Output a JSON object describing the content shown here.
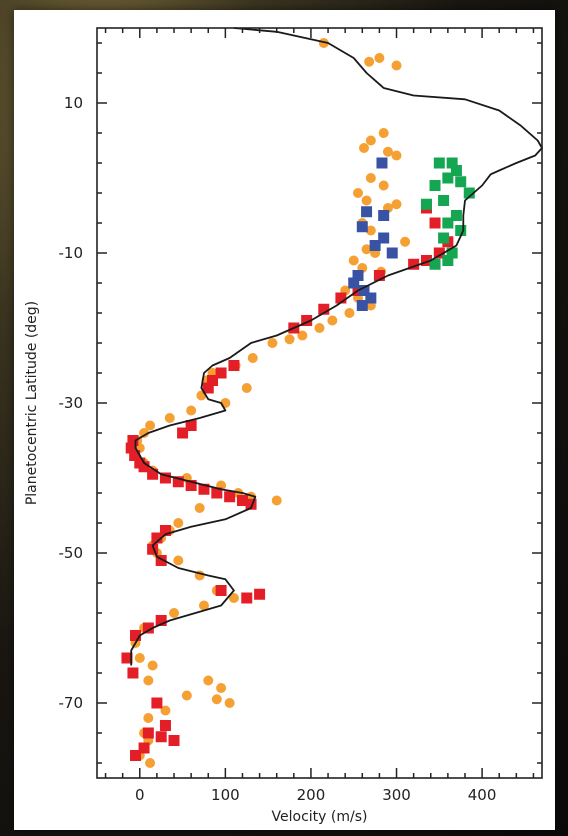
{
  "chart_data": {
    "type": "scatter",
    "title": "",
    "xlabel": "Velocity (m/s)",
    "ylabel": "Planetocentric Latitude (deg)",
    "xlim": [
      -50,
      470
    ],
    "ylim": [
      -80,
      20
    ],
    "xticks": [
      0,
      100,
      200,
      300,
      400
    ],
    "yticks": [
      10,
      -10,
      -30,
      -50,
      -70
    ],
    "grid": false,
    "legend": "none",
    "colors": {
      "orange": "#f5a033",
      "red": "#e41e26",
      "blue": "#3953a4",
      "green": "#14a651",
      "line": "#1a1a1a"
    },
    "series": [
      {
        "color": "orange",
        "marker": "circle",
        "points": [
          [
            215,
            18
          ],
          [
            280,
            16
          ],
          [
            268,
            15.5
          ],
          [
            300,
            15
          ],
          [
            285,
            6
          ],
          [
            270,
            5
          ],
          [
            262,
            4
          ],
          [
            290,
            3.5
          ],
          [
            300,
            3
          ],
          [
            270,
            0
          ],
          [
            285,
            -1
          ],
          [
            255,
            -2
          ],
          [
            265,
            -3
          ],
          [
            300,
            -3.5
          ],
          [
            290,
            -4
          ],
          [
            260,
            -6
          ],
          [
            270,
            -7
          ],
          [
            285,
            -8
          ],
          [
            310,
            -8.5
          ],
          [
            265,
            -9.5
          ],
          [
            275,
            -10
          ],
          [
            250,
            -11
          ],
          [
            260,
            -12
          ],
          [
            282,
            -12.5
          ],
          [
            240,
            -15
          ],
          [
            255,
            -16
          ],
          [
            270,
            -17
          ],
          [
            245,
            -18
          ],
          [
            225,
            -19
          ],
          [
            210,
            -20
          ],
          [
            190,
            -21
          ],
          [
            175,
            -21.5
          ],
          [
            155,
            -22
          ],
          [
            132,
            -24
          ],
          [
            112,
            -25
          ],
          [
            85,
            -26
          ],
          [
            78,
            -27
          ],
          [
            72,
            -29
          ],
          [
            100,
            -30
          ],
          [
            125,
            -28
          ],
          [
            60,
            -31
          ],
          [
            35,
            -32
          ],
          [
            12,
            -33
          ],
          [
            5,
            -34
          ],
          [
            -3,
            -35
          ],
          [
            0,
            -36
          ],
          [
            -5,
            -37
          ],
          [
            5,
            -38
          ],
          [
            15,
            -39
          ],
          [
            55,
            -40
          ],
          [
            95,
            -41
          ],
          [
            115,
            -42
          ],
          [
            130,
            -42.5
          ],
          [
            160,
            -43
          ],
          [
            70,
            -44
          ],
          [
            45,
            -46
          ],
          [
            35,
            -47
          ],
          [
            25,
            -48
          ],
          [
            15,
            -49
          ],
          [
            20,
            -50
          ],
          [
            45,
            -51
          ],
          [
            70,
            -53
          ],
          [
            90,
            -55
          ],
          [
            110,
            -56
          ],
          [
            75,
            -57
          ],
          [
            40,
            -58
          ],
          [
            25,
            -59
          ],
          [
            5,
            -60
          ],
          [
            -5,
            -62
          ],
          [
            0,
            -64
          ],
          [
            15,
            -65
          ],
          [
            10,
            -67
          ],
          [
            80,
            -67
          ],
          [
            95,
            -68
          ],
          [
            55,
            -69
          ],
          [
            90,
            -69.5
          ],
          [
            105,
            -70
          ],
          [
            30,
            -71
          ],
          [
            10,
            -72
          ],
          [
            5,
            -74
          ],
          [
            10,
            -75
          ],
          [
            0,
            -77
          ],
          [
            12,
            -78
          ]
        ]
      },
      {
        "color": "red",
        "marker": "square",
        "points": [
          [
            335,
            -4
          ],
          [
            345,
            -6
          ],
          [
            360,
            -8.5
          ],
          [
            350,
            -10
          ],
          [
            335,
            -11
          ],
          [
            320,
            -11.5
          ],
          [
            280,
            -13
          ],
          [
            255,
            -15
          ],
          [
            235,
            -16
          ],
          [
            215,
            -17.5
          ],
          [
            195,
            -19
          ],
          [
            180,
            -20
          ],
          [
            110,
            -25
          ],
          [
            95,
            -26
          ],
          [
            85,
            -27
          ],
          [
            80,
            -28
          ],
          [
            60,
            -33
          ],
          [
            50,
            -34
          ],
          [
            -8,
            -35
          ],
          [
            -10,
            -36
          ],
          [
            -6,
            -37
          ],
          [
            0,
            -38
          ],
          [
            5,
            -38.5
          ],
          [
            15,
            -39.5
          ],
          [
            30,
            -40
          ],
          [
            45,
            -40.5
          ],
          [
            60,
            -41
          ],
          [
            75,
            -41.5
          ],
          [
            90,
            -42
          ],
          [
            105,
            -42.5
          ],
          [
            120,
            -43
          ],
          [
            130,
            -43.5
          ],
          [
            30,
            -47
          ],
          [
            20,
            -48
          ],
          [
            15,
            -49.5
          ],
          [
            25,
            -51
          ],
          [
            95,
            -55
          ],
          [
            125,
            -56
          ],
          [
            140,
            -55.5
          ],
          [
            25,
            -59
          ],
          [
            10,
            -60
          ],
          [
            -5,
            -61
          ],
          [
            -15,
            -64
          ],
          [
            -8,
            -66
          ],
          [
            20,
            -70
          ],
          [
            30,
            -73
          ],
          [
            10,
            -74
          ],
          [
            25,
            -74.5
          ],
          [
            40,
            -75
          ],
          [
            5,
            -76
          ],
          [
            -5,
            -77
          ]
        ]
      },
      {
        "color": "blue",
        "marker": "square",
        "points": [
          [
            283,
            2
          ],
          [
            265,
            -4.5
          ],
          [
            285,
            -5
          ],
          [
            260,
            -6.5
          ],
          [
            285,
            -8
          ],
          [
            275,
            -9
          ],
          [
            295,
            -10
          ],
          [
            255,
            -13
          ],
          [
            250,
            -14
          ],
          [
            262,
            -15
          ],
          [
            270,
            -16
          ],
          [
            260,
            -17
          ]
        ]
      },
      {
        "color": "green",
        "marker": "square",
        "points": [
          [
            350,
            2
          ],
          [
            365,
            2
          ],
          [
            370,
            1
          ],
          [
            360,
            0
          ],
          [
            375,
            -0.5
          ],
          [
            345,
            -1
          ],
          [
            385,
            -2
          ],
          [
            355,
            -3
          ],
          [
            335,
            -3.5
          ],
          [
            370,
            -5
          ],
          [
            360,
            -6
          ],
          [
            375,
            -7
          ],
          [
            355,
            -8
          ],
          [
            365,
            -10
          ],
          [
            345,
            -11.5
          ],
          [
            360,
            -11
          ]
        ]
      }
    ],
    "curve": [
      [
        110,
        20
      ],
      [
        160,
        19.5
      ],
      [
        220,
        18
      ],
      [
        250,
        16
      ],
      [
        265,
        14
      ],
      [
        285,
        12
      ],
      [
        320,
        11
      ],
      [
        380,
        10.5
      ],
      [
        420,
        9
      ],
      [
        445,
        7
      ],
      [
        465,
        5
      ],
      [
        470,
        4
      ],
      [
        462,
        3
      ],
      [
        440,
        2
      ],
      [
        420,
        1
      ],
      [
        410,
        0.5
      ],
      [
        400,
        -1
      ],
      [
        390,
        -2
      ],
      [
        380,
        -3
      ],
      [
        378,
        -5
      ],
      [
        378,
        -7
      ],
      [
        370,
        -9
      ],
      [
        340,
        -11
      ],
      [
        290,
        -13
      ],
      [
        255,
        -15
      ],
      [
        230,
        -17
      ],
      [
        200,
        -19
      ],
      [
        160,
        -21
      ],
      [
        130,
        -22
      ],
      [
        105,
        -24
      ],
      [
        85,
        -25
      ],
      [
        75,
        -26
      ],
      [
        72,
        -28
      ],
      [
        80,
        -29.5
      ],
      [
        95,
        -30
      ],
      [
        100,
        -31
      ],
      [
        70,
        -32
      ],
      [
        35,
        -33
      ],
      [
        10,
        -34
      ],
      [
        -5,
        -35
      ],
      [
        -5,
        -36
      ],
      [
        0,
        -37
      ],
      [
        5,
        -38
      ],
      [
        25,
        -39.5
      ],
      [
        60,
        -40.5
      ],
      [
        95,
        -41.5
      ],
      [
        120,
        -42
      ],
      [
        135,
        -42.5
      ],
      [
        130,
        -44
      ],
      [
        100,
        -45.5
      ],
      [
        60,
        -46.5
      ],
      [
        30,
        -47.5
      ],
      [
        15,
        -49
      ],
      [
        20,
        -50.5
      ],
      [
        45,
        -52
      ],
      [
        80,
        -53
      ],
      [
        100,
        -53.5
      ],
      [
        110,
        -55
      ],
      [
        95,
        -57
      ],
      [
        65,
        -58
      ],
      [
        35,
        -59
      ],
      [
        15,
        -60
      ],
      [
        0,
        -61
      ],
      [
        -10,
        -63
      ],
      [
        -10,
        -65
      ]
    ]
  }
}
